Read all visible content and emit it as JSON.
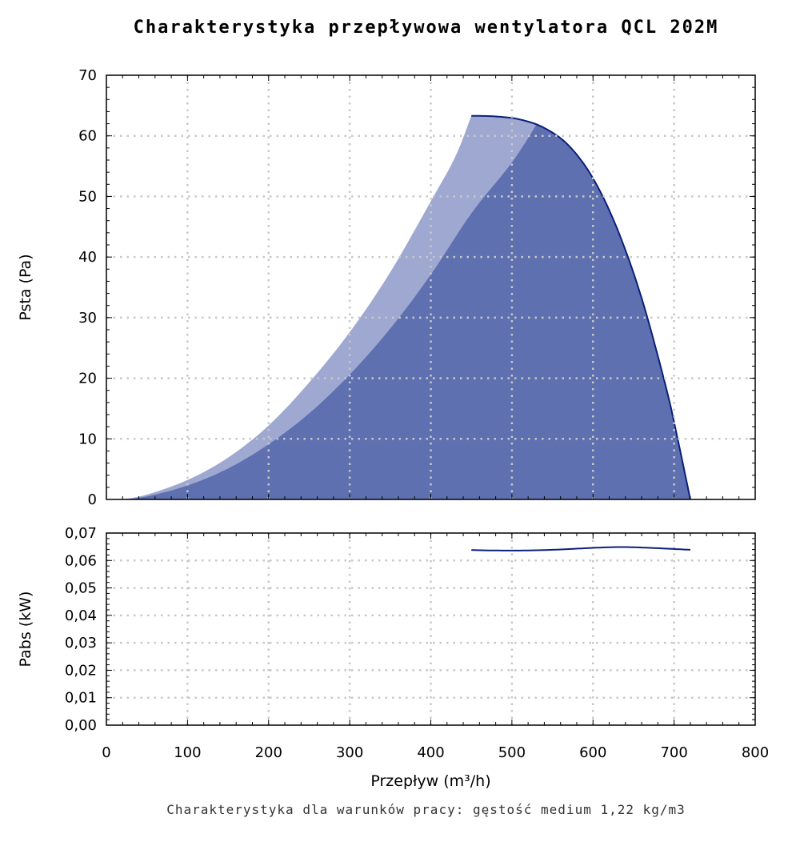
{
  "title": "Charakterystyka przepływowa wentylatora QCL 202M",
  "footnote": "Charakterystyka dla warunków pracy: gęstość medium 1,22 kg/m3",
  "colors": {
    "light_area": "#9ea8d0",
    "dark_area": "#5e70b0",
    "curve": "#0b1f7a",
    "grid": "#c8c8c8"
  },
  "chart_data": [
    {
      "type": "area",
      "xlabel": "Przepływ (m³/h)",
      "ylabel": "Psta (Pa)",
      "xlim": [
        0,
        800
      ],
      "ylim": [
        0,
        70
      ],
      "x_ticks": [
        "0",
        "100",
        "200",
        "300",
        "400",
        "500",
        "600",
        "700",
        "800"
      ],
      "y_ticks": [
        "0",
        "10",
        "20",
        "30",
        "40",
        "50",
        "60",
        "70"
      ],
      "grid": true,
      "series": [
        {
          "role": "operating-region-upper-boundary",
          "x": [
            20,
            50,
            100,
            150,
            200,
            250,
            300,
            350,
            400,
            430,
            450
          ],
          "y": [
            0,
            0.8,
            3.2,
            6.9,
            12.2,
            19.3,
            27.6,
            37.5,
            49.2,
            56.5,
            63.3
          ]
        },
        {
          "role": "operating-region-lower-boundary",
          "x": [
            20,
            50,
            100,
            150,
            200,
            250,
            300,
            350,
            400,
            450,
            500,
            530
          ],
          "y": [
            0,
            0.5,
            2.3,
            5.1,
            9.1,
            14.2,
            20.6,
            28.2,
            37.1,
            47.2,
            55.6,
            61.8
          ]
        },
        {
          "role": "fan-curve",
          "x": [
            450,
            480,
            510,
            540,
            570,
            600,
            630,
            660,
            690,
            705,
            720
          ],
          "y": [
            63.3,
            63.2,
            62.7,
            61.3,
            58.4,
            53.0,
            44.6,
            33.2,
            18.5,
            9.6,
            0
          ]
        }
      ]
    },
    {
      "type": "line",
      "ylabel": "Pabs (kW)",
      "xlim": [
        0,
        800
      ],
      "ylim": [
        0,
        0.07
      ],
      "x_ticks": [
        "0",
        "100",
        "200",
        "300",
        "400",
        "500",
        "600",
        "700",
        "800"
      ],
      "y_ticks": [
        "0,00",
        "0,01",
        "0,02",
        "0,03",
        "0,04",
        "0,05",
        "0,06",
        "0,07"
      ],
      "grid": true,
      "series": [
        {
          "x": [
            450,
            500,
            550,
            600,
            635,
            670,
            720
          ],
          "y": [
            0.0638,
            0.0636,
            0.0639,
            0.0646,
            0.0649,
            0.0646,
            0.0639
          ]
        }
      ]
    }
  ]
}
